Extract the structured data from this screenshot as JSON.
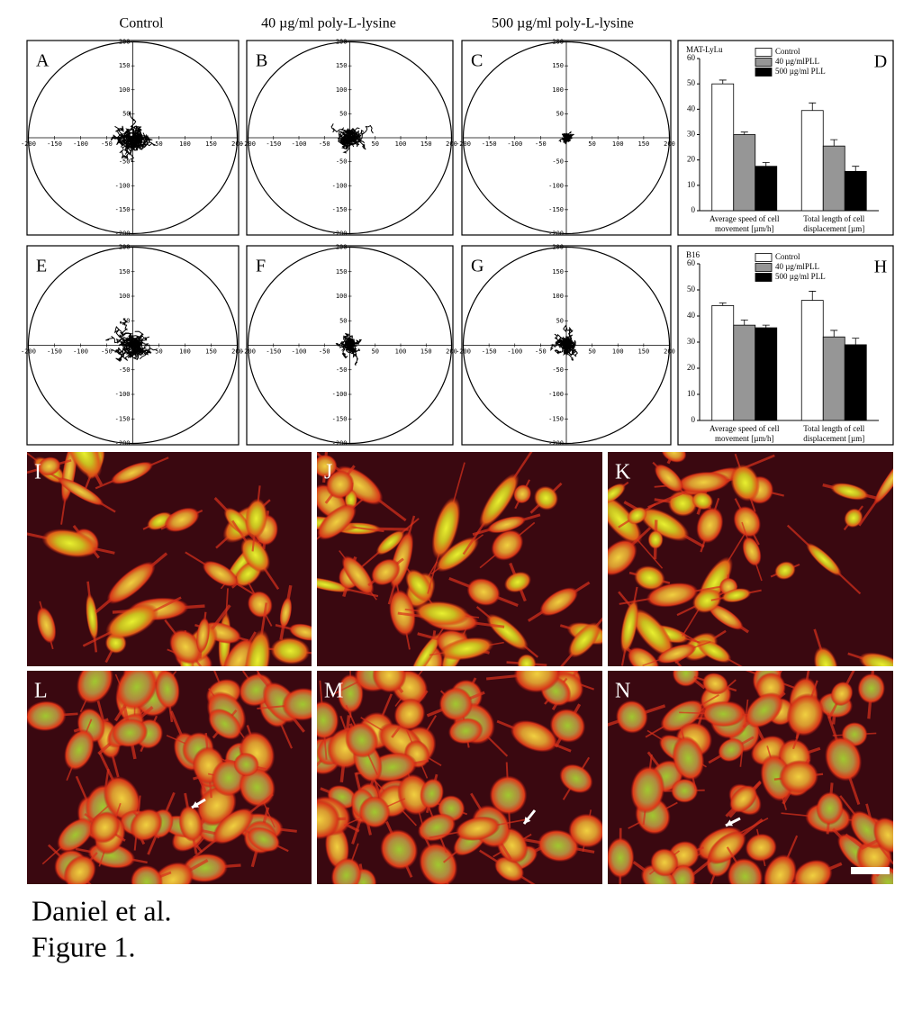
{
  "column_labels": [
    "Control",
    "40 µg/ml poly-L-lysine",
    "500 µg/ml poly-L-lysine"
  ],
  "trajectory_panels": [
    "A",
    "B",
    "C",
    "E",
    "F",
    "G"
  ],
  "trajectory_axis_ticks": [
    -200,
    -150,
    -100,
    -50,
    50,
    100,
    150,
    200
  ],
  "chart_data": [
    {
      "type": "bar",
      "title": "MAT-LyLu",
      "panel_label": "D",
      "categories": [
        [
          "Average speed of  cell",
          "movement [µm/h]"
        ],
        [
          "Total length of cell",
          "displacement [µm]"
        ]
      ],
      "series": [
        {
          "name": "Control",
          "color": "#ffffff",
          "values": [
            50,
            39.5
          ],
          "errors": [
            1.5,
            3
          ]
        },
        {
          "name": "40 µg/mlPLL",
          "color": "#969696",
          "values": [
            30,
            25.5
          ],
          "errors": [
            1,
            2.5
          ]
        },
        {
          "name": "500 µg/ml PLL",
          "color": "#000000",
          "values": [
            17.5,
            15.5
          ],
          "errors": [
            1.5,
            2
          ]
        }
      ],
      "ylim": [
        0,
        60
      ],
      "yticks": [
        0,
        10,
        20,
        30,
        40,
        50,
        60
      ]
    },
    {
      "type": "bar",
      "title": "B16",
      "panel_label": "H",
      "categories": [
        [
          "Average speed of  cell",
          "movement [µm/h]"
        ],
        [
          "Total length of cell",
          "displacement [µm]"
        ]
      ],
      "series": [
        {
          "name": "Control",
          "color": "#ffffff",
          "values": [
            44,
            46
          ],
          "errors": [
            1,
            3.5
          ]
        },
        {
          "name": "40 µg/mlPLL",
          "color": "#969696",
          "values": [
            36.5,
            32
          ],
          "errors": [
            2,
            2.5
          ]
        },
        {
          "name": "500 µg/ml PLL",
          "color": "#000000",
          "values": [
            35.5,
            29
          ],
          "errors": [
            1,
            2.5
          ]
        }
      ],
      "ylim": [
        0,
        60
      ],
      "yticks": [
        0,
        10,
        20,
        30,
        40,
        50,
        60
      ]
    }
  ],
  "micrograph_panels": [
    "I",
    "J",
    "K",
    "L",
    "M",
    "N"
  ],
  "caption": [
    "Daniel et al.",
    "Figure 1."
  ]
}
